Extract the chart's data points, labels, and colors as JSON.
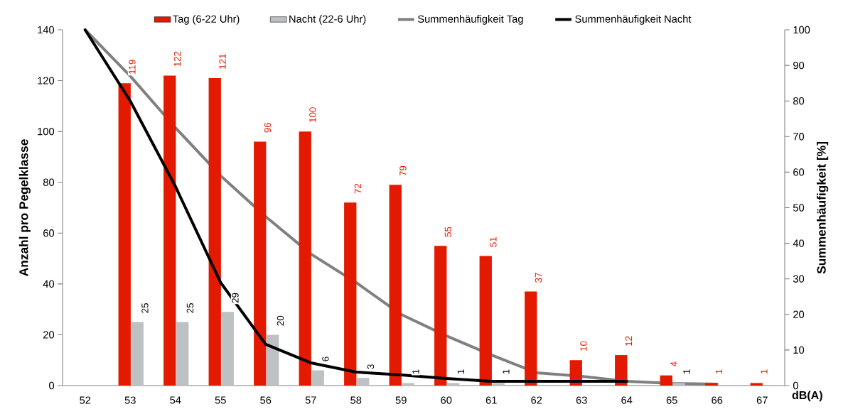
{
  "chart_data": {
    "type": "bar",
    "xlabel": "dB(A)",
    "ylabel": "Anzahl pro Pegelklasse",
    "y2label": "Summenhäufigkeit [%]",
    "categories": [
      "52",
      "53",
      "54",
      "55",
      "56",
      "57",
      "58",
      "59",
      "60",
      "61",
      "62",
      "63",
      "64",
      "65",
      "66",
      "67"
    ],
    "series": [
      {
        "name": "Tag (6-22 Uhr)",
        "color": "#e31a00",
        "values": [
          null,
          119,
          122,
          121,
          96,
          100,
          72,
          79,
          55,
          51,
          37,
          10,
          12,
          4,
          1,
          1
        ],
        "value_labels": [
          null,
          "119",
          "122",
          "121",
          "96",
          "100",
          "72",
          "79",
          "55",
          "51",
          "37",
          "10",
          "12",
          "4",
          "1",
          "1"
        ]
      },
      {
        "name": "Nacht (22-6 Uhr)",
        "color": "#bdc1c4",
        "values": [
          null,
          25,
          25,
          29,
          20,
          6,
          3,
          1,
          1,
          1,
          null,
          null,
          null,
          1,
          null,
          null
        ],
        "value_labels": [
          null,
          "25",
          "25",
          "29",
          "20",
          "6",
          "3",
          "1",
          "1",
          "1",
          null,
          null,
          null,
          "1",
          null,
          null
        ]
      },
      {
        "name": "Summenhäufigkeit Tag",
        "type": "line",
        "axis": "y2",
        "color": "#808080",
        "values": [
          100,
          87,
          72.5,
          59,
          47.5,
          37,
          29,
          20,
          14,
          8.6,
          3.6,
          2.6,
          1.2,
          0.6,
          0.4,
          null
        ]
      },
      {
        "name": "Summenhäufigkeit Nacht",
        "type": "line",
        "axis": "y2",
        "color": "#000000",
        "values": [
          100,
          80,
          56,
          29,
          11.6,
          6.4,
          3.8,
          3,
          2,
          1.2,
          1.2,
          1.2,
          1.2,
          null,
          null,
          null
        ]
      }
    ],
    "ylim": [
      0,
      140
    ],
    "yticks": [
      0,
      20,
      40,
      60,
      80,
      100,
      120,
      140
    ],
    "y2lim": [
      0,
      100
    ],
    "y2ticks": [
      0,
      10,
      20,
      30,
      40,
      50,
      60,
      70,
      80,
      90,
      100
    ],
    "legend": "top",
    "line_style": "solid",
    "marker": "none"
  }
}
